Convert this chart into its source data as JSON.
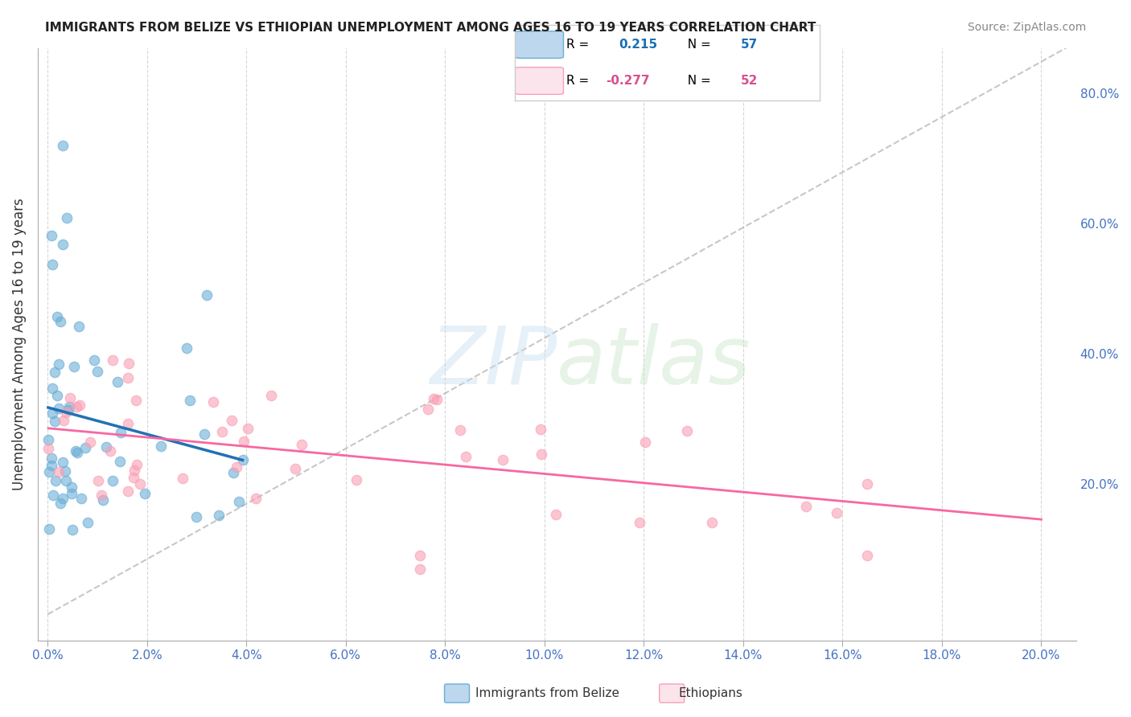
{
  "title": "IMMIGRANTS FROM BELIZE VS ETHIOPIAN UNEMPLOYMENT AMONG AGES 16 TO 19 YEARS CORRELATION CHART",
  "source": "Source: ZipAtlas.com",
  "ylabel": "Unemployment Among Ages 16 to 19 years",
  "background_color": "#ffffff",
  "blue_color": "#6baed6",
  "blue_fill": "#bdd7ee",
  "pink_color": "#fa9fb5",
  "pink_fill": "#fce4ec",
  "trendline_blue_color": "#2171b5",
  "trendline_pink_color": "#f768a1",
  "trendline_diagonal_color": "#b0b0b0",
  "r_blue": "0.215",
  "n_blue": "57",
  "r_pink": "-0.277",
  "n_pink": "52",
  "legend_label_blue": "Immigrants from Belize",
  "legend_label_pink": "Ethiopians"
}
